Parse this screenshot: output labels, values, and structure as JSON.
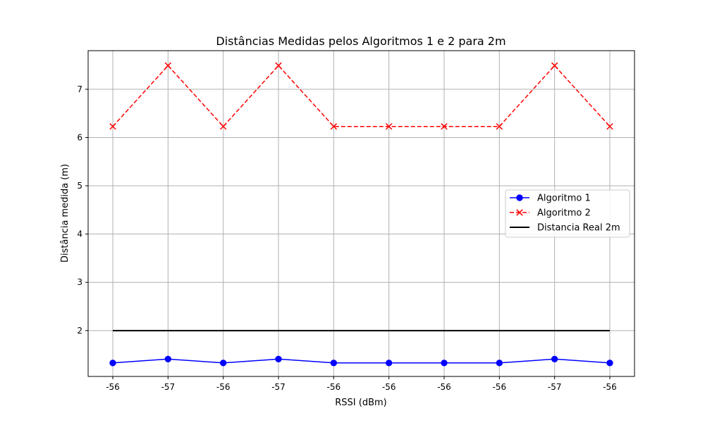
{
  "chart_data": {
    "type": "line",
    "title": "Distâncias Medidas pelos Algoritmos 1 e 2 para 2m",
    "xlabel": "RSSI (dBm)",
    "ylabel": "Distância medida (m)",
    "categories": [
      "-56",
      "-57",
      "-56",
      "-57",
      "-56",
      "-56",
      "-56",
      "-56",
      "-57",
      "-56"
    ],
    "ylim": [
      1.05,
      7.8
    ],
    "yticks": [
      2,
      3,
      4,
      5,
      6,
      7
    ],
    "grid": true,
    "legend_position": "center-right",
    "series": [
      {
        "name": "Algoritmo 1",
        "values": [
          1.33,
          1.41,
          1.33,
          1.41,
          1.33,
          1.33,
          1.33,
          1.33,
          1.41,
          1.33
        ],
        "color": "#0000ff",
        "line_style": "solid",
        "marker": "circle"
      },
      {
        "name": "Algoritmo 2",
        "values": [
          6.23,
          7.49,
          6.23,
          7.49,
          6.23,
          6.23,
          6.23,
          6.23,
          7.49,
          6.23
        ],
        "color": "#ff0000",
        "line_style": "dashed",
        "marker": "x"
      },
      {
        "name": "Distancia Real 2m",
        "values": [
          2,
          2,
          2,
          2,
          2,
          2,
          2,
          2,
          2,
          2
        ],
        "color": "#000000",
        "line_style": "solid",
        "marker": "none"
      }
    ]
  }
}
